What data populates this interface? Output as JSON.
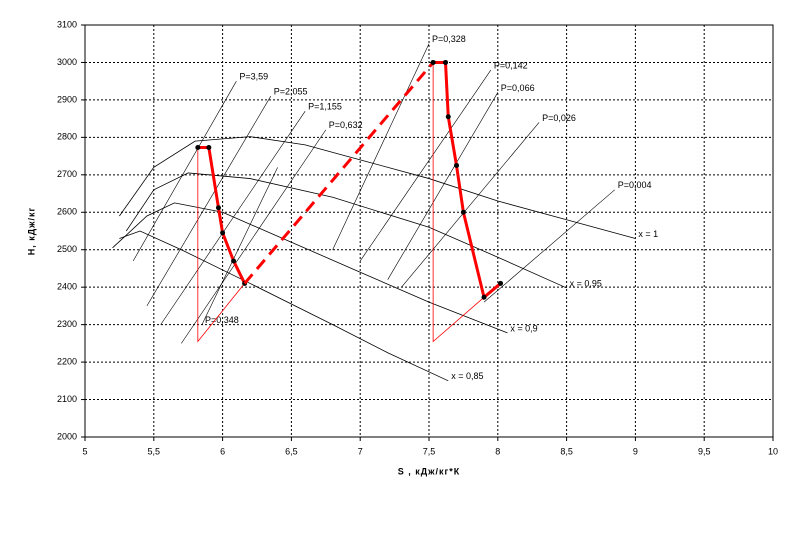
{
  "chart_data": {
    "type": "line",
    "xlabel": "S , кДж/кг*К",
    "ylabel": "H, кДж/кг",
    "xlim": [
      5,
      10
    ],
    "ylim": [
      2000,
      3100
    ],
    "xticks": [
      5,
      {
        "value": 5.5,
        "label": "5,5"
      },
      6,
      {
        "value": 6.5,
        "label": "6,5"
      },
      7,
      {
        "value": 7.5,
        "label": "7,5"
      },
      8,
      {
        "value": 8.5,
        "label": "8,5"
      },
      9,
      {
        "value": 9.5,
        "label": "9,5"
      },
      10
    ],
    "yticks": [
      2000,
      2100,
      2200,
      2300,
      2400,
      2500,
      2600,
      2700,
      2800,
      2900,
      3000,
      3100
    ],
    "grid": true,
    "series": [
      {
        "name": "x = 1",
        "color": "#000000",
        "line_width": 0.8,
        "x": [
          5.25,
          5.5,
          5.8,
          6.2,
          6.6,
          7.0,
          7.5,
          8.0,
          8.5,
          9.0
        ],
        "values": [
          2590,
          2720,
          2790,
          2802,
          2780,
          2740,
          2690,
          2630,
          2580,
          2530
        ]
      },
      {
        "name": "x = 0,95",
        "color": "#000000",
        "line_width": 0.8,
        "x": [
          5.3,
          5.5,
          5.75,
          6.2,
          6.8,
          7.5,
          8.0,
          8.5
        ],
        "values": [
          2550,
          2660,
          2705,
          2690,
          2640,
          2560,
          2480,
          2398
        ]
      },
      {
        "name": "x = 0,9",
        "color": "#000000",
        "line_width": 0.8,
        "x": [
          5.2,
          5.45,
          5.65,
          6.0,
          6.5,
          7.0,
          7.5,
          8.07
        ],
        "values": [
          2505,
          2590,
          2625,
          2600,
          2520,
          2440,
          2360,
          2278
        ]
      },
      {
        "name": "x = 0,85",
        "color": "#000000",
        "line_width": 0.8,
        "x": [
          5.25,
          5.4,
          5.7,
          6.2,
          6.8,
          7.2,
          7.64
        ],
        "values": [
          2530,
          2550,
          2500,
          2410,
          2300,
          2225,
          2150
        ]
      },
      {
        "name": "P=3,59",
        "color": "#000000",
        "line_width": 0.6,
        "x": [
          5.35,
          6.1
        ],
        "values": [
          2470,
          2950
        ]
      },
      {
        "name": "P=2,055",
        "color": "#000000",
        "line_width": 0.6,
        "x": [
          5.45,
          6.35
        ],
        "values": [
          2350,
          2910
        ]
      },
      {
        "name": "P=1,155",
        "color": "#000000",
        "line_width": 0.6,
        "x": [
          5.55,
          6.6
        ],
        "values": [
          2300,
          2870
        ]
      },
      {
        "name": "P=0,632",
        "color": "#000000",
        "line_width": 0.6,
        "x": [
          5.7,
          6.75
        ],
        "values": [
          2250,
          2820
        ]
      },
      {
        "name": "P=0,348",
        "color": "#000000",
        "line_width": 0.6,
        "x": [
          6.4,
          5.85
        ],
        "values": [
          2720,
          2300
        ]
      },
      {
        "name": "P=0,328",
        "color": "#000000",
        "line_width": 0.6,
        "x": [
          6.8,
          7.5
        ],
        "values": [
          2500,
          3050
        ]
      },
      {
        "name": "P=0,142",
        "color": "#000000",
        "line_width": 0.6,
        "x": [
          7.0,
          7.95
        ],
        "values": [
          2470,
          2980
        ]
      },
      {
        "name": "P=0,066",
        "color": "#000000",
        "line_width": 0.6,
        "x": [
          7.2,
          8.0
        ],
        "values": [
          2420,
          2920
        ]
      },
      {
        "name": "P=0,026",
        "color": "#000000",
        "line_width": 0.6,
        "x": [
          7.3,
          8.3
        ],
        "values": [
          2400,
          2840
        ]
      },
      {
        "name": "P=0,004",
        "color": "#000000",
        "line_width": 0.6,
        "x": [
          7.9,
          8.85
        ],
        "values": [
          2360,
          2660
        ]
      },
      {
        "color": "#ff0000",
        "line_width": 0.8,
        "x": [
          5.82,
          5.82,
          6.16
        ],
        "values": [
          2773,
          2255,
          2410
        ]
      },
      {
        "color": "#ff0000",
        "line_width": 0.8,
        "x": [
          7.53,
          7.53,
          7.9
        ],
        "values": [
          3000,
          2255,
          2373
        ]
      },
      {
        "color": "#ff0000",
        "line_width": 3,
        "markers": true,
        "x": [
          5.82,
          5.9,
          5.97,
          6.0,
          6.08,
          6.16
        ],
        "values": [
          2773,
          2773,
          2612,
          2545,
          2470,
          2410
        ]
      },
      {
        "color": "#ff0000",
        "line_width": 3,
        "dashed": true,
        "x": [
          6.16,
          7.53
        ],
        "values": [
          2410,
          3000
        ]
      },
      {
        "color": "#ff0000",
        "line_width": 3,
        "markers": true,
        "x": [
          7.53,
          7.62,
          7.64,
          7.7,
          7.75,
          7.9,
          8.02
        ],
        "values": [
          3000,
          3000,
          2855,
          2725,
          2600,
          2373,
          2410
        ]
      }
    ]
  }
}
